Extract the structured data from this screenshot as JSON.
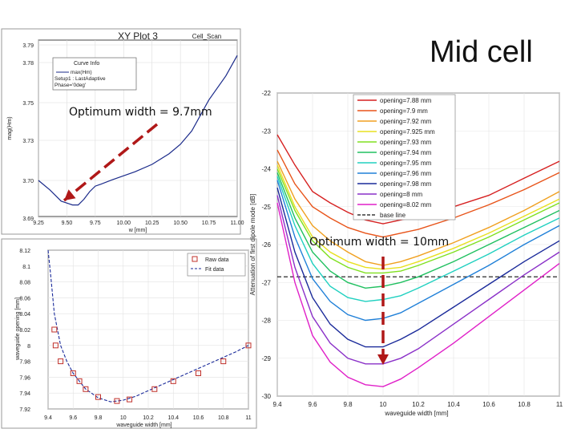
{
  "slide": {
    "title": "Mid cell",
    "annotation_left": "Optimum width = 9.7mm",
    "annotation_right": "Optimum width = 10mm"
  },
  "chart_data": [
    {
      "type": "line",
      "title": "XY Plot 3",
      "corner_label": "Cell_Scan",
      "xlabel": "w [mm]",
      "ylabel": "mag(Hm)",
      "xlim": [
        9.25,
        11.0
      ],
      "ylim": [
        3.69,
        3.79
      ],
      "xticks": [
        "9.25",
        "9.50",
        "9.75",
        "10.00",
        "10.25",
        "10.50",
        "10.75",
        "11.00"
      ],
      "yticks": [
        "3.79",
        "3.78",
        "3.75",
        "3.73",
        "3.70",
        "3.69"
      ],
      "legend_title": "Curve Info",
      "legend_entries": [
        "max(Hm)",
        "Setup1 : LastAdaptive",
        "Phase='0deg'"
      ],
      "color": "#1a2a8a",
      "series": [
        {
          "name": "max(Hm)",
          "x": [
            9.25,
            9.35,
            9.45,
            9.55,
            9.6,
            9.65,
            9.7,
            9.75,
            9.8,
            9.9,
            10.0,
            10.1,
            10.25,
            10.4,
            10.5,
            10.6,
            10.75,
            10.9,
            11.0
          ],
          "y": [
            3.7,
            3.6975,
            3.6945,
            3.6935,
            3.6935,
            3.695,
            3.697,
            3.6985,
            3.699,
            3.7005,
            3.7035,
            3.7065,
            3.712,
            3.72,
            3.727,
            3.735,
            3.752,
            3.77,
            3.784
          ]
        }
      ]
    },
    {
      "type": "scatter",
      "xlabel": "waveguide width [mm]",
      "ylabel": "waveguide opening [mm]",
      "xlim": [
        9.4,
        11.0
      ],
      "ylim": [
        7.92,
        8.12
      ],
      "xticks": [
        "9.4",
        "9.6",
        "9.8",
        "10",
        "10.2",
        "10.4",
        "10.6",
        "10.8",
        "11"
      ],
      "yticks": [
        "8.12",
        "8.1",
        "8.08",
        "8.06",
        "8.04",
        "8.02",
        "8",
        "7.98",
        "7.96",
        "7.94",
        "7.92"
      ],
      "legend": [
        "Raw data",
        "Fit data"
      ],
      "series": [
        {
          "name": "Raw data",
          "x": [
            9.45,
            9.46,
            9.5,
            9.6,
            9.65,
            9.7,
            9.8,
            9.95,
            10.05,
            10.25,
            10.4,
            10.6,
            10.8,
            11.0
          ],
          "y": [
            8.02,
            8.0,
            7.98,
            7.965,
            7.955,
            7.945,
            7.935,
            7.93,
            7.932,
            7.945,
            7.955,
            7.965,
            7.98,
            8.0
          ]
        },
        {
          "name": "Fit data",
          "x": [
            9.4,
            9.42,
            9.45,
            9.5,
            9.55,
            9.6,
            9.7,
            9.8,
            9.9,
            10.0,
            10.1,
            10.2,
            10.3,
            10.4,
            10.5,
            10.6,
            10.7,
            10.8,
            10.9,
            11.0
          ],
          "y": [
            8.12,
            8.09,
            8.04,
            8.0,
            7.98,
            7.965,
            7.945,
            7.934,
            7.929,
            7.931,
            7.936,
            7.943,
            7.95,
            7.957,
            7.964,
            7.971,
            7.978,
            7.985,
            7.992,
            8.0
          ]
        }
      ]
    },
    {
      "type": "line",
      "xlabel": "waveguide width [mm]",
      "ylabel": "Attenuation of first dipole mode [dB]",
      "xlim": [
        9.4,
        11.0
      ],
      "ylim": [
        -30,
        -22
      ],
      "xticks": [
        "9.4",
        "9.6",
        "9.8",
        "10",
        "10.2",
        "10.4",
        "10.6",
        "10.8",
        "11"
      ],
      "yticks": [
        "-22",
        "-23",
        "-24",
        "-25",
        "-26",
        "-27",
        "-28",
        "-29",
        "-30"
      ],
      "x": [
        9.4,
        9.5,
        9.6,
        9.7,
        9.8,
        9.9,
        10.0,
        10.1,
        10.2,
        10.4,
        10.6,
        10.8,
        11.0
      ],
      "series": [
        {
          "name": "opening=7.88 mm",
          "color": "#d62020",
          "values": [
            -23.1,
            -23.9,
            -24.6,
            -24.9,
            -25.15,
            -25.35,
            -25.45,
            -25.35,
            -25.25,
            -25.0,
            -24.7,
            -24.25,
            -23.8
          ]
        },
        {
          "name": "opening=7.9 mm",
          "color": "#e8541a",
          "values": [
            -23.5,
            -24.4,
            -25.0,
            -25.3,
            -25.55,
            -25.7,
            -25.8,
            -25.7,
            -25.6,
            -25.3,
            -24.95,
            -24.55,
            -24.1
          ]
        },
        {
          "name": "opening=7.92 mm",
          "color": "#f0a020",
          "values": [
            -23.8,
            -24.8,
            -25.5,
            -25.9,
            -26.2,
            -26.45,
            -26.55,
            -26.45,
            -26.3,
            -25.95,
            -25.55,
            -25.1,
            -24.6
          ]
        },
        {
          "name": "opening=7.925 mm",
          "color": "#e8e020",
          "values": [
            -23.9,
            -25.0,
            -25.8,
            -26.2,
            -26.45,
            -26.6,
            -26.65,
            -26.6,
            -26.45,
            -26.1,
            -25.7,
            -25.25,
            -24.8
          ]
        },
        {
          "name": "opening=7.93 mm",
          "color": "#80e020",
          "values": [
            -24.0,
            -25.1,
            -25.9,
            -26.35,
            -26.6,
            -26.75,
            -26.75,
            -26.7,
            -26.55,
            -26.2,
            -25.8,
            -25.35,
            -24.9
          ]
        },
        {
          "name": "opening=7.94 mm",
          "color": "#20c060",
          "values": [
            -24.1,
            -25.3,
            -26.2,
            -26.7,
            -27.0,
            -27.15,
            -27.1,
            -27.0,
            -26.85,
            -26.45,
            -26.0,
            -25.55,
            -25.1
          ]
        },
        {
          "name": "opening=7.95 mm",
          "color": "#20d0c0",
          "values": [
            -24.2,
            -25.5,
            -26.5,
            -27.1,
            -27.4,
            -27.5,
            -27.45,
            -27.35,
            -27.15,
            -26.7,
            -26.25,
            -25.75,
            -25.3
          ]
        },
        {
          "name": "opening=7.96 mm",
          "color": "#2080d8",
          "values": [
            -24.3,
            -25.8,
            -26.9,
            -27.5,
            -27.85,
            -28.0,
            -27.95,
            -27.8,
            -27.55,
            -27.05,
            -26.55,
            -26.0,
            -25.5
          ]
        },
        {
          "name": "opening=7.98 mm",
          "color": "#1a2a9a",
          "values": [
            -24.5,
            -26.2,
            -27.4,
            -28.1,
            -28.5,
            -28.7,
            -28.7,
            -28.5,
            -28.25,
            -27.65,
            -27.05,
            -26.45,
            -25.9
          ]
        },
        {
          "name": "opening=8 mm",
          "color": "#8a30c8",
          "values": [
            -24.7,
            -26.6,
            -27.9,
            -28.6,
            -29.0,
            -29.15,
            -29.15,
            -29.0,
            -28.75,
            -28.1,
            -27.45,
            -26.8,
            -26.2
          ]
        },
        {
          "name": "opening=8.02 mm",
          "color": "#e020c8",
          "values": [
            -24.9,
            -27.0,
            -28.4,
            -29.1,
            -29.5,
            -29.7,
            -29.75,
            -29.55,
            -29.25,
            -28.6,
            -27.9,
            -27.2,
            -26.5
          ]
        }
      ],
      "baseline": {
        "name": "base line",
        "value": -26.85
      }
    }
  ]
}
